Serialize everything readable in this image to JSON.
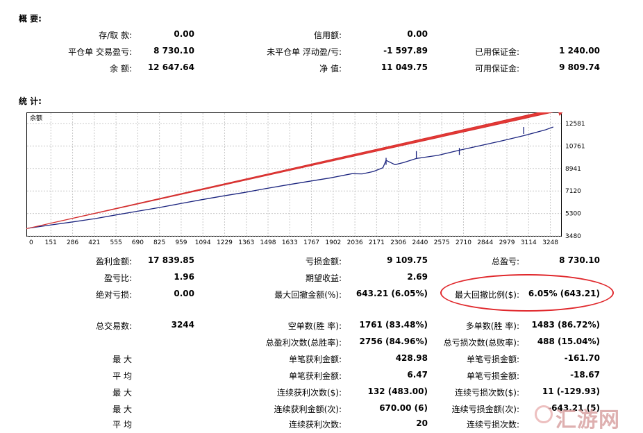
{
  "summary": {
    "title": "概 要:",
    "rows": [
      [
        [
          "存/取 款:",
          "0.00"
        ],
        [
          "信用额:",
          "0.00"
        ],
        [
          "",
          ""
        ]
      ],
      [
        [
          "平仓单 交易盈亏:",
          "8 730.10"
        ],
        [
          "未平仓单 浮动盈/亏:",
          "-1 597.89"
        ],
        [
          "已用保证金:",
          "1 240.00"
        ]
      ],
      [
        [
          "余 额:",
          "12 647.64"
        ],
        [
          "净 值:",
          "11 049.75"
        ],
        [
          "可用保证金:",
          "9 809.74"
        ]
      ]
    ]
  },
  "stats": {
    "title": "统 计:",
    "rows_top": [
      [
        [
          "盈利金额:",
          "17 839.85"
        ],
        [
          "亏损金额:",
          "9 109.75"
        ],
        [
          "总盈亏:",
          "8 730.10"
        ]
      ],
      [
        [
          "盈亏比:",
          "1.96"
        ],
        [
          "期望收益:",
          "2.69"
        ],
        [
          "",
          ""
        ]
      ],
      [
        [
          "绝对亏损:",
          "0.00"
        ],
        [
          "最大回撤金额(%):",
          "643.21 (6.05%)"
        ],
        [
          "最大回撤比例($):",
          "6.05% (643.21)"
        ]
      ]
    ],
    "rows_bottom": [
      [
        [
          "总交易数:",
          "3244"
        ],
        [
          "空单数(胜 率):",
          "1761 (83.48%)"
        ],
        [
          "多单数(胜 率):",
          "1483 (86.72%)"
        ]
      ],
      [
        [
          "",
          ""
        ],
        [
          "总盈利次数(总胜率):",
          "2756 (84.96%)"
        ],
        [
          "总亏损次数(总败率):",
          "488 (15.04%)"
        ]
      ],
      [
        [
          "最 大",
          ""
        ],
        [
          "单笔获利金额:",
          "428.98"
        ],
        [
          "单笔亏损金额:",
          "-161.70"
        ]
      ],
      [
        [
          "平 均",
          ""
        ],
        [
          "单笔获利金额:",
          "6.47"
        ],
        [
          "单笔亏损金额:",
          "-18.67"
        ]
      ],
      [
        [
          "最 大",
          ""
        ],
        [
          "连续获利次数($):",
          "132 (483.00)"
        ],
        [
          "连续亏损次数($):",
          "11 (-129.93)"
        ]
      ],
      [
        [
          "最 大",
          ""
        ],
        [
          "连续获利金额(次):",
          "670.00 (6)"
        ],
        [
          "连续亏损金额(次):",
          "-643.21 (5)"
        ]
      ],
      [
        [
          "平 均",
          ""
        ],
        [
          "连续获利次数:",
          "20"
        ],
        [
          "连续亏损次数:",
          ""
        ]
      ]
    ]
  },
  "chart_data": {
    "type": "line",
    "title": "余额",
    "x_ticks": [
      "0",
      "151",
      "286",
      "421",
      "555",
      "690",
      "825",
      "959",
      "1094",
      "1229",
      "1363",
      "1498",
      "1633",
      "1767",
      "1902",
      "2036",
      "2171",
      "2306",
      "2440",
      "2575",
      "2710",
      "2844",
      "2979",
      "3114",
      "3248"
    ],
    "y_ticks": [
      "12581",
      "10761",
      "8941",
      "7120",
      "5300",
      "3480"
    ],
    "xlim": [
      0,
      3340
    ],
    "ylim": [
      3480,
      13100
    ],
    "series": [
      {
        "color": "#1a237e",
        "x": [
          0,
          151,
          286,
          421,
          555,
          690,
          825,
          959,
          1094,
          1229,
          1363,
          1498,
          1633,
          1767,
          1902,
          2036,
          2100,
          2171,
          2230,
          2250,
          2306,
          2360,
          2440,
          2575,
          2710,
          2844,
          2979,
          3114,
          3248,
          3300
        ],
        "y": [
          4100,
          4380,
          4620,
          4880,
          5180,
          5480,
          5780,
          6100,
          6420,
          6720,
          7000,
          7320,
          7620,
          7900,
          8180,
          8520,
          8500,
          8700,
          9000,
          9600,
          9250,
          9420,
          9750,
          10000,
          10420,
          10800,
          11180,
          11600,
          12060,
          12300
        ]
      }
    ],
    "spikes": [
      [
        2250,
        9800
      ],
      [
        2440,
        10350
      ],
      [
        2710,
        10600
      ],
      [
        3114,
        12300
      ]
    ]
  },
  "watermark": "汇游网"
}
